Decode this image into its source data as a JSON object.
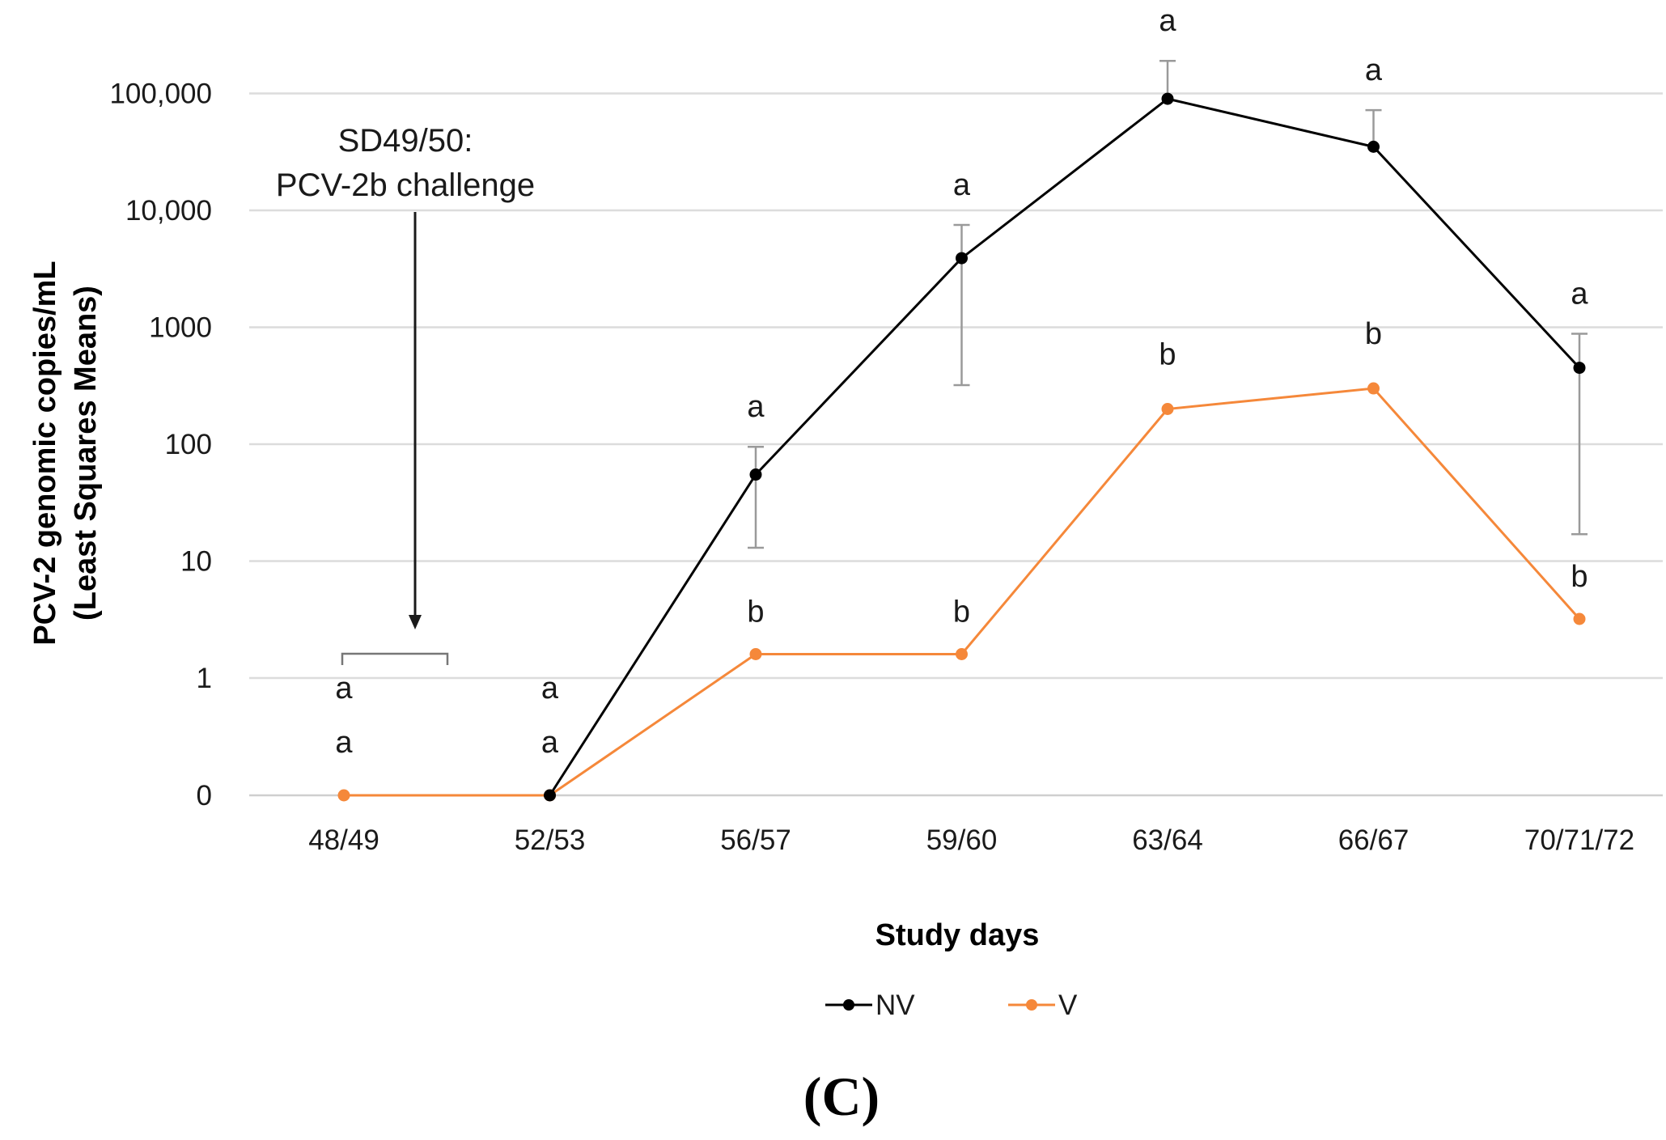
{
  "chart_data": {
    "type": "line",
    "ylabel_line1": "PCV-2 genomic copies/mL",
    "ylabel_line2": "(Least Squares Means)",
    "xlabel": "Study days",
    "categories": [
      "48/49",
      "52/53",
      "56/57",
      "59/60",
      "63/64",
      "66/67",
      "70/71/72"
    ],
    "y_scale": "log",
    "y_tick_labels": [
      "0",
      "1",
      "10",
      "100",
      "1000",
      "10,000",
      "100,000"
    ],
    "grid": true,
    "legend_position": "bottom",
    "series": [
      {
        "name": "NV",
        "color": "#000000",
        "values": [
          null,
          0,
          55,
          3900,
          90000,
          35000,
          450
        ],
        "error_upper": [
          null,
          null,
          95,
          7500,
          190000,
          72000,
          880
        ],
        "error_lower": [
          null,
          null,
          13,
          320,
          null,
          null,
          17
        ],
        "letters": [
          [
            "a"
          ],
          [
            "a"
          ],
          [
            "a"
          ],
          [
            "a"
          ],
          [
            "a"
          ],
          [
            "a"
          ],
          [
            "a"
          ]
        ]
      },
      {
        "name": "V",
        "color": "#f5883a",
        "values": [
          0,
          0,
          1.6,
          1.6,
          200,
          300,
          3.2
        ],
        "letters": [
          [
            "a"
          ],
          [
            "a"
          ],
          [
            "b"
          ],
          [
            "b"
          ],
          [
            "b"
          ],
          [
            "b"
          ],
          [
            "b"
          ]
        ]
      }
    ],
    "annotation": {
      "line1": "SD49/50:",
      "line2": "PCV-2b challenge"
    },
    "panel_label": "(C)"
  }
}
